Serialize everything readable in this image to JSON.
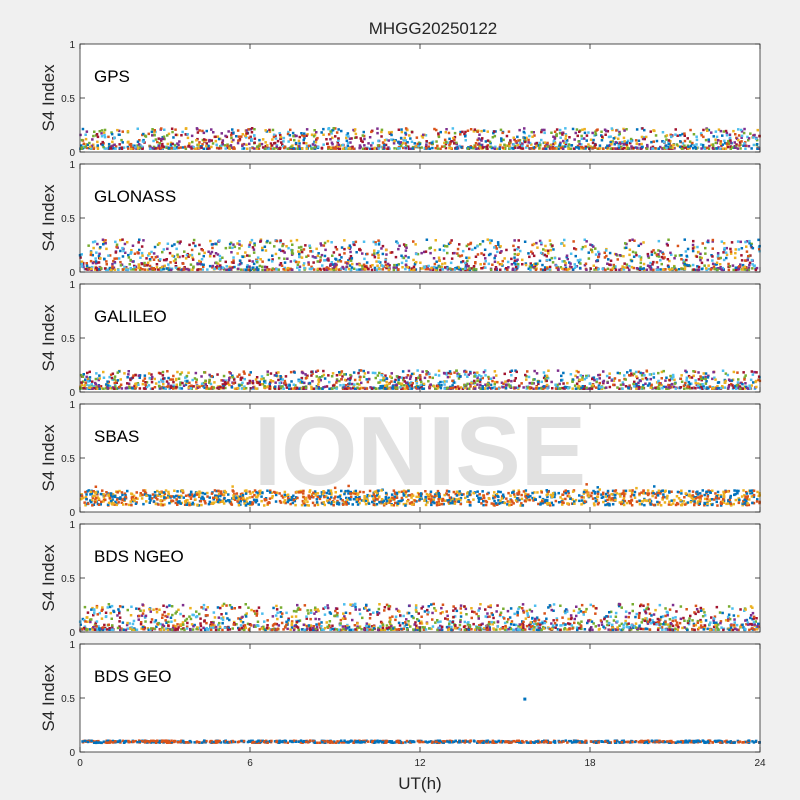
{
  "figure": {
    "title": "MHGG20250122",
    "xlabel": "UT(h)",
    "watermark": "IONISE"
  },
  "chart_data": [
    {
      "type": "scatter",
      "label": "GPS",
      "ylabel": "S4 Index",
      "xlim": [
        0,
        24
      ],
      "ylim": [
        0,
        1
      ],
      "xticks": [
        "0",
        "6",
        "12",
        "18",
        "24"
      ],
      "yticks": [
        "0",
        "0.5",
        "1"
      ],
      "grid": false,
      "series_colors": [
        "#0072bd",
        "#d95319",
        "#edb120",
        "#7e2f8e",
        "#77ac30",
        "#4dbeee",
        "#a2142f"
      ],
      "typical_s4_range": [
        0.03,
        0.22
      ]
    },
    {
      "type": "scatter",
      "label": "GLONASS",
      "ylabel": "S4 Index",
      "xlim": [
        0,
        24
      ],
      "ylim": [
        0,
        1
      ],
      "xticks": [
        "0",
        "6",
        "12",
        "18",
        "24"
      ],
      "yticks": [
        "0",
        "0.5",
        "1"
      ],
      "grid": false,
      "series_colors": [
        "#0072bd",
        "#d95319",
        "#edb120",
        "#7e2f8e",
        "#77ac30",
        "#4dbeee",
        "#a2142f"
      ],
      "typical_s4_range": [
        0.02,
        0.3
      ]
    },
    {
      "type": "scatter",
      "label": "GALILEO",
      "ylabel": "S4 Index",
      "xlim": [
        0,
        24
      ],
      "ylim": [
        0,
        1
      ],
      "xticks": [
        "0",
        "6",
        "12",
        "18",
        "24"
      ],
      "yticks": [
        "0",
        "0.5",
        "1"
      ],
      "grid": false,
      "series_colors": [
        "#0072bd",
        "#d95319",
        "#edb120",
        "#7e2f8e",
        "#77ac30",
        "#4dbeee",
        "#a2142f"
      ],
      "typical_s4_range": [
        0.03,
        0.2
      ]
    },
    {
      "type": "scatter",
      "label": "SBAS",
      "ylabel": "S4 Index",
      "xlim": [
        0,
        24
      ],
      "ylim": [
        0,
        1
      ],
      "xticks": [
        "0",
        "6",
        "12",
        "18",
        "24"
      ],
      "yticks": [
        "0",
        "0.5",
        "1"
      ],
      "grid": false,
      "series_colors": [
        "#0072bd",
        "#d95319",
        "#edb120"
      ],
      "typical_s4_range": [
        0.06,
        0.28
      ]
    },
    {
      "type": "scatter",
      "label": "BDS NGEO",
      "ylabel": "S4 Index",
      "xlim": [
        0,
        24
      ],
      "ylim": [
        0,
        1
      ],
      "xticks": [
        "0",
        "6",
        "12",
        "18",
        "24"
      ],
      "yticks": [
        "0",
        "0.5",
        "1"
      ],
      "grid": false,
      "series_colors": [
        "#0072bd",
        "#d95319",
        "#edb120",
        "#7e2f8e",
        "#77ac30",
        "#4dbeee",
        "#a2142f"
      ],
      "typical_s4_range": [
        0.02,
        0.26
      ]
    },
    {
      "type": "scatter",
      "label": "BDS GEO",
      "ylabel": "S4 Index",
      "xlim": [
        0,
        24
      ],
      "ylim": [
        0,
        1
      ],
      "xticks": [
        "0",
        "6",
        "12",
        "18",
        "24"
      ],
      "yticks": [
        "0",
        "0.5",
        "1"
      ],
      "grid": false,
      "series_colors": [
        "#0072bd",
        "#d95319"
      ],
      "typical_s4_range": [
        0.08,
        0.11
      ],
      "outlier": {
        "x": 15.7,
        "y": 0.49
      }
    }
  ]
}
